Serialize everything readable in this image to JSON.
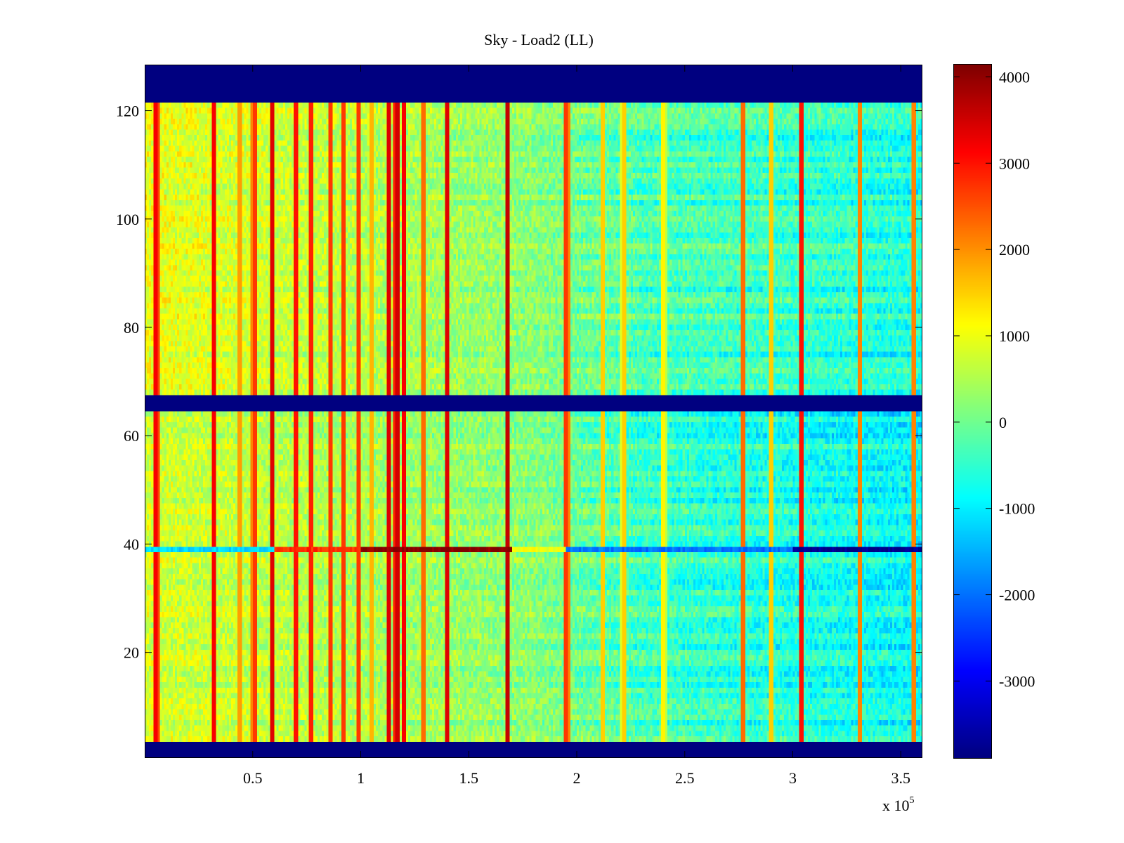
{
  "chart_data": {
    "type": "heatmap",
    "title": "Sky - Load2 (LL)",
    "xlabel": "",
    "ylabel": "",
    "x_range": [
      0,
      360000
    ],
    "y_range": [
      0.5,
      128.5
    ],
    "x_ticks": [
      50000,
      100000,
      150000,
      200000,
      250000,
      300000,
      350000
    ],
    "x_tick_labels": [
      "0.5",
      "1",
      "1.5",
      "2",
      "2.5",
      "3",
      "3.5"
    ],
    "x_multiplier": {
      "base": "x 10",
      "exponent": "5"
    },
    "y_ticks": [
      20,
      40,
      60,
      80,
      100,
      120
    ],
    "y_tick_labels": [
      "20",
      "40",
      "60",
      "80",
      "100",
      "120"
    ],
    "colorbar": {
      "colormap": "jet",
      "range": [
        -3900,
        4150
      ],
      "ticks": [
        4000,
        3000,
        2000,
        1000,
        0,
        -1000,
        -2000,
        -3000
      ],
      "tick_labels": [
        "4000",
        "3000",
        "2000",
        "1000",
        "0",
        "-1000",
        "-2000",
        "-3000"
      ]
    },
    "masked_rows": [
      [
        1,
        3
      ],
      [
        65,
        67
      ],
      [
        122,
        128
      ]
    ],
    "masked_value": -3900,
    "baseline": {
      "description_points_x": [
        0,
        180000,
        230000,
        280000,
        360000
      ],
      "upper_block_values": [
        1000,
        200,
        -300,
        -400,
        -700
      ],
      "lower_block_values": [
        800,
        200,
        -400,
        -600,
        -900
      ]
    },
    "vertical_streaks": [
      {
        "x": 5000,
        "value": 3500
      },
      {
        "x": 32000,
        "value": 3500
      },
      {
        "x": 44000,
        "value": 2200
      },
      {
        "x": 51000,
        "value": 3000
      },
      {
        "x": 59000,
        "value": 3700
      },
      {
        "x": 70000,
        "value": 3300
      },
      {
        "x": 77000,
        "value": 3200
      },
      {
        "x": 86000,
        "value": 3000
      },
      {
        "x": 92000,
        "value": 3000
      },
      {
        "x": 99000,
        "value": 3000
      },
      {
        "x": 105000,
        "value": 2000
      },
      {
        "x": 113000,
        "value": 3700
      },
      {
        "x": 117000,
        "value": 3800
      },
      {
        "x": 120000,
        "value": 3500
      },
      {
        "x": 129000,
        "value": 2600
      },
      {
        "x": 140000,
        "value": 3700
      },
      {
        "x": 168000,
        "value": 3900
      },
      {
        "x": 195000,
        "value": 3000
      },
      {
        "x": 212000,
        "value": 1800
      },
      {
        "x": 222000,
        "value": 1800
      },
      {
        "x": 240000,
        "value": 1500
      },
      {
        "x": 277000,
        "value": 2600
      },
      {
        "x": 290000,
        "value": 1800
      },
      {
        "x": 304000,
        "value": 3300
      },
      {
        "x": 331000,
        "value": 2400
      },
      {
        "x": 356000,
        "value": 2400
      }
    ],
    "horizontal_feature": {
      "row": 39,
      "segments": [
        {
          "x_range": [
            0,
            60000
          ],
          "value": -1200
        },
        {
          "x_range": [
            60000,
            100000
          ],
          "value": 2800
        },
        {
          "x_range": [
            100000,
            170000
          ],
          "value": 4100
        },
        {
          "x_range": [
            170000,
            195000
          ],
          "value": 1000
        },
        {
          "x_range": [
            195000,
            300000
          ],
          "value": -2000
        },
        {
          "x_range": [
            300000,
            360000
          ],
          "value": -3800
        }
      ]
    }
  }
}
